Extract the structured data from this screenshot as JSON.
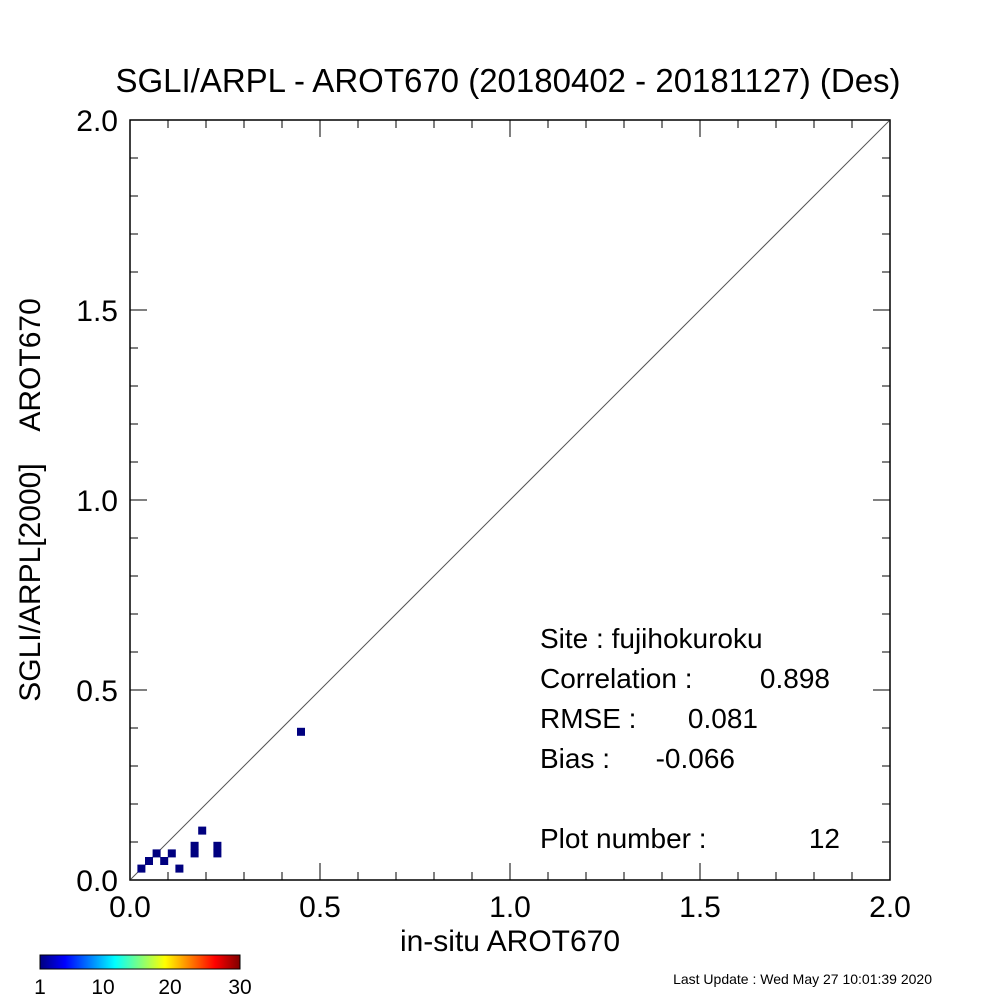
{
  "chart_data": {
    "type": "scatter",
    "title": "SGLI/ARPL - AROT670 (20180402 - 20181127) (Des)",
    "xlabel": "in-situ AROT670",
    "ylabel": "SGLI/ARPL[2000]    AROT670",
    "xlim": [
      0.0,
      2.0
    ],
    "ylim": [
      0.0,
      2.0
    ],
    "x_ticks": [
      "0.0",
      "0.5",
      "1.0",
      "1.5",
      "2.0"
    ],
    "y_ticks": [
      "0.0",
      "0.5",
      "1.0",
      "1.5",
      "2.0"
    ],
    "one_to_one_line": true,
    "grid": false,
    "point_color": "#00007f",
    "points": [
      {
        "x": 0.03,
        "y": 0.03
      },
      {
        "x": 0.05,
        "y": 0.05
      },
      {
        "x": 0.07,
        "y": 0.07
      },
      {
        "x": 0.09,
        "y": 0.05
      },
      {
        "x": 0.11,
        "y": 0.07
      },
      {
        "x": 0.13,
        "y": 0.03
      },
      {
        "x": 0.17,
        "y": 0.07
      },
      {
        "x": 0.17,
        "y": 0.09
      },
      {
        "x": 0.19,
        "y": 0.13
      },
      {
        "x": 0.23,
        "y": 0.07
      },
      {
        "x": 0.23,
        "y": 0.09
      },
      {
        "x": 0.45,
        "y": 0.39
      }
    ],
    "stats": {
      "site": "Site : fujihokuroku",
      "correlation_label": "Correlation :",
      "correlation_value": "0.898",
      "rmse_label": "RMSE :",
      "rmse_value": "0.081",
      "bias_label": "Bias :",
      "bias_value": "-0.066",
      "plot_number_label": "Plot number :",
      "plot_number_value": "12"
    },
    "colorbar": {
      "labels": [
        "1",
        "10",
        "20",
        "30"
      ],
      "colors": [
        "#00007f",
        "#0000ff",
        "#007fff",
        "#00ffff",
        "#7fff7f",
        "#ffff00",
        "#ff7f00",
        "#ff0000",
        "#7f0000"
      ]
    }
  },
  "footer": "Last Update : Wed May 27 10:01:39 2020"
}
